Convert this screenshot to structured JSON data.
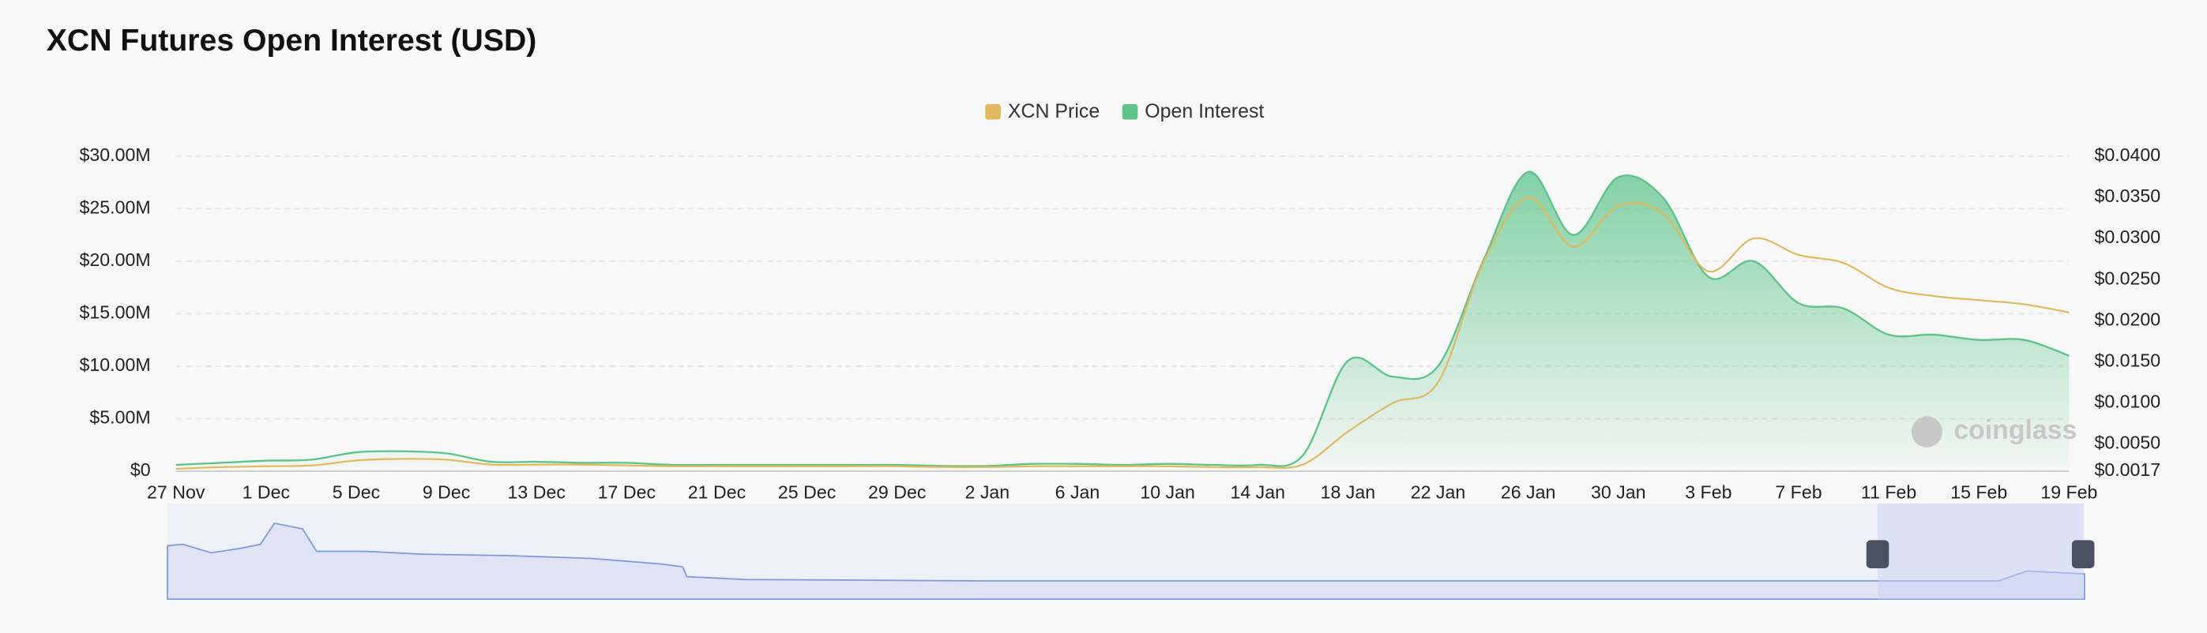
{
  "chart_data": {
    "type": "dual-axis-area-line",
    "title": "XCN Futures Open Interest (USD)",
    "watermark": "coinglass",
    "categories": [
      "27 Nov",
      null,
      "1 Dec",
      null,
      "5 Dec",
      null,
      "9 Dec",
      null,
      "13 Dec",
      null,
      "17 Dec",
      null,
      "21 Dec",
      null,
      "25 Dec",
      null,
      "29 Dec",
      null,
      "2 Jan",
      null,
      "6 Jan",
      null,
      "10 Jan",
      null,
      "14 Jan",
      null,
      "18 Jan",
      null,
      "22 Jan",
      null,
      "26 Jan",
      null,
      "30 Jan",
      null,
      "3 Feb",
      null,
      "7 Feb",
      null,
      "11 Feb",
      null,
      "15 Feb",
      null,
      "19 Feb"
    ],
    "series": [
      {
        "name": "XCN Price",
        "color": "#e3b85a",
        "axis": "y2",
        "values": [
          0.002,
          0.0022,
          0.0023,
          0.0024,
          0.003,
          0.0032,
          0.0031,
          0.0025,
          0.0025,
          0.0025,
          0.0024,
          0.0023,
          0.0023,
          0.0023,
          0.0023,
          0.0023,
          0.0023,
          0.0022,
          0.0022,
          0.0023,
          0.0023,
          0.0023,
          0.0023,
          0.0022,
          0.0022,
          0.0025,
          0.0065,
          0.01,
          0.0125,
          0.027,
          0.035,
          0.029,
          0.034,
          0.033,
          0.026,
          0.03,
          0.028,
          0.027,
          0.024,
          0.023,
          0.0225,
          0.022,
          0.021
        ]
      },
      {
        "name": "Open Interest",
        "color": "#5cc489",
        "values": [
          600000,
          800000,
          1000000,
          1100000,
          1800000,
          1900000,
          1700000,
          900000,
          900000,
          800000,
          800000,
          600000,
          600000,
          600000,
          600000,
          600000,
          600000,
          500000,
          500000,
          700000,
          700000,
          600000,
          700000,
          600000,
          600000,
          1500000,
          10500000,
          9000000,
          10000000,
          20000000,
          28500000,
          22500000,
          28000000,
          26000000,
          18500000,
          20000000,
          16000000,
          15500000,
          13000000,
          13000000,
          12500000,
          12500000,
          11000000
        ]
      }
    ],
    "ylim": [
      0,
      30000000
    ],
    "yticks": [
      {
        "value": 0,
        "label": "$0"
      },
      {
        "value": 5000000,
        "label": "$5.00M"
      },
      {
        "value": 10000000,
        "label": "$10.00M"
      },
      {
        "value": 15000000,
        "label": "$15.00M"
      },
      {
        "value": 20000000,
        "label": "$20.00M"
      },
      {
        "value": 25000000,
        "label": "$25.00M"
      },
      {
        "value": 30000000,
        "label": "$30.00M"
      }
    ],
    "y2lim": [
      0.0017,
      0.04
    ],
    "y2ticks": [
      {
        "value": 0.0017,
        "label": "$0.0017"
      },
      {
        "value": 0.005,
        "label": "$0.0050"
      },
      {
        "value": 0.01,
        "label": "$0.0100"
      },
      {
        "value": 0.015,
        "label": "$0.0150"
      },
      {
        "value": 0.02,
        "label": "$0.0200"
      },
      {
        "value": 0.025,
        "label": "$0.0250"
      },
      {
        "value": 0.03,
        "label": "$0.0300"
      },
      {
        "value": 0.035,
        "label": "$0.0350"
      },
      {
        "value": 0.04,
        "label": "$0.0400"
      }
    ],
    "grid": true,
    "legend": "top"
  }
}
